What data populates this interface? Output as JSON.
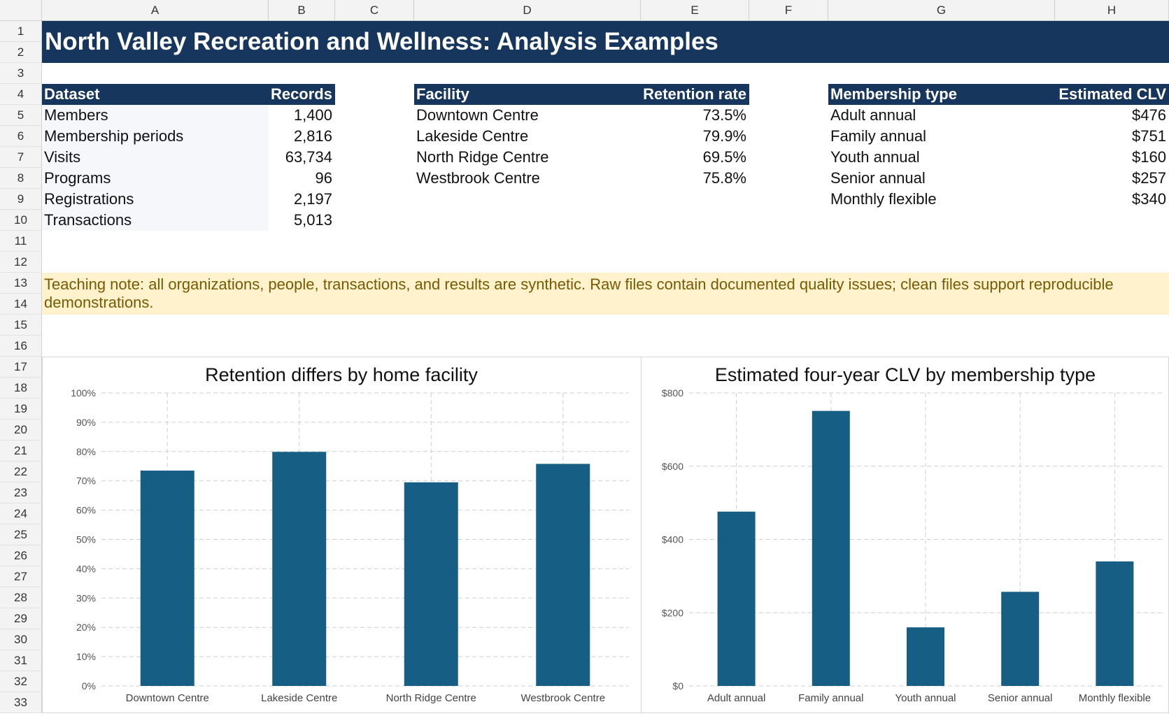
{
  "columns": [
    "A",
    "B",
    "C",
    "D",
    "E",
    "F",
    "G",
    "H"
  ],
  "rows": [
    "1",
    "2",
    "3",
    "4",
    "5",
    "6",
    "7",
    "8",
    "9",
    "10",
    "11",
    "12",
    "13",
    "14",
    "15",
    "16",
    "17",
    "18",
    "19",
    "20",
    "21",
    "22",
    "23",
    "24",
    "25",
    "26",
    "27",
    "28",
    "29",
    "30",
    "31",
    "32",
    "33"
  ],
  "title": "North Valley Recreation and Wellness: Analysis Examples",
  "datasets": {
    "headers": [
      "Dataset",
      "Records"
    ],
    "rows": [
      {
        "name": "Members",
        "value": "1,400"
      },
      {
        "name": "Membership periods",
        "value": "2,816"
      },
      {
        "name": "Visits",
        "value": "63,734"
      },
      {
        "name": "Programs",
        "value": "96"
      },
      {
        "name": "Registrations",
        "value": "2,197"
      },
      {
        "name": "Transactions",
        "value": "5,013"
      }
    ]
  },
  "facilities": {
    "headers": [
      "Facility",
      "Retention rate"
    ],
    "rows": [
      {
        "name": "Downtown Centre",
        "value": "73.5%"
      },
      {
        "name": "Lakeside Centre",
        "value": "79.9%"
      },
      {
        "name": "North Ridge Centre",
        "value": "69.5%"
      },
      {
        "name": "Westbrook Centre",
        "value": "75.8%"
      }
    ]
  },
  "memberships": {
    "headers": [
      "Membership type",
      "Estimated CLV"
    ],
    "rows": [
      {
        "name": "Adult annual",
        "value": "$476"
      },
      {
        "name": "Family annual",
        "value": "$751"
      },
      {
        "name": "Youth annual",
        "value": "$160"
      },
      {
        "name": "Senior annual",
        "value": "$257"
      },
      {
        "name": "Monthly flexible",
        "value": "$340"
      }
    ]
  },
  "note": "Teaching note: all organizations, people, transactions, and results are synthetic. Raw files contain documented quality issues; clean files support reproducible demonstrations.",
  "colors": {
    "header": "#17365d",
    "bar": "#175e85",
    "note_bg": "#fff2cc",
    "note_text": "#7a5a00"
  },
  "chart_data": [
    {
      "type": "bar",
      "title": "Retention differs by home facility",
      "categories": [
        "Downtown Centre",
        "Lakeside Centre",
        "North Ridge Centre",
        "Westbrook Centre"
      ],
      "values": [
        73.5,
        79.9,
        69.5,
        75.8
      ],
      "ylim": [
        0,
        100
      ],
      "yticks": [
        "0%",
        "10%",
        "20%",
        "30%",
        "40%",
        "50%",
        "60%",
        "70%",
        "80%",
        "90%",
        "100%"
      ],
      "grid": true
    },
    {
      "type": "bar",
      "title": "Estimated four-year CLV by membership type",
      "categories": [
        "Adult annual",
        "Family annual",
        "Youth annual",
        "Senior annual",
        "Monthly flexible"
      ],
      "values": [
        476,
        751,
        160,
        257,
        340
      ],
      "ylim": [
        0,
        800
      ],
      "yticks": [
        "$0",
        "$200",
        "$400",
        "$600",
        "$800"
      ],
      "grid": true
    }
  ]
}
